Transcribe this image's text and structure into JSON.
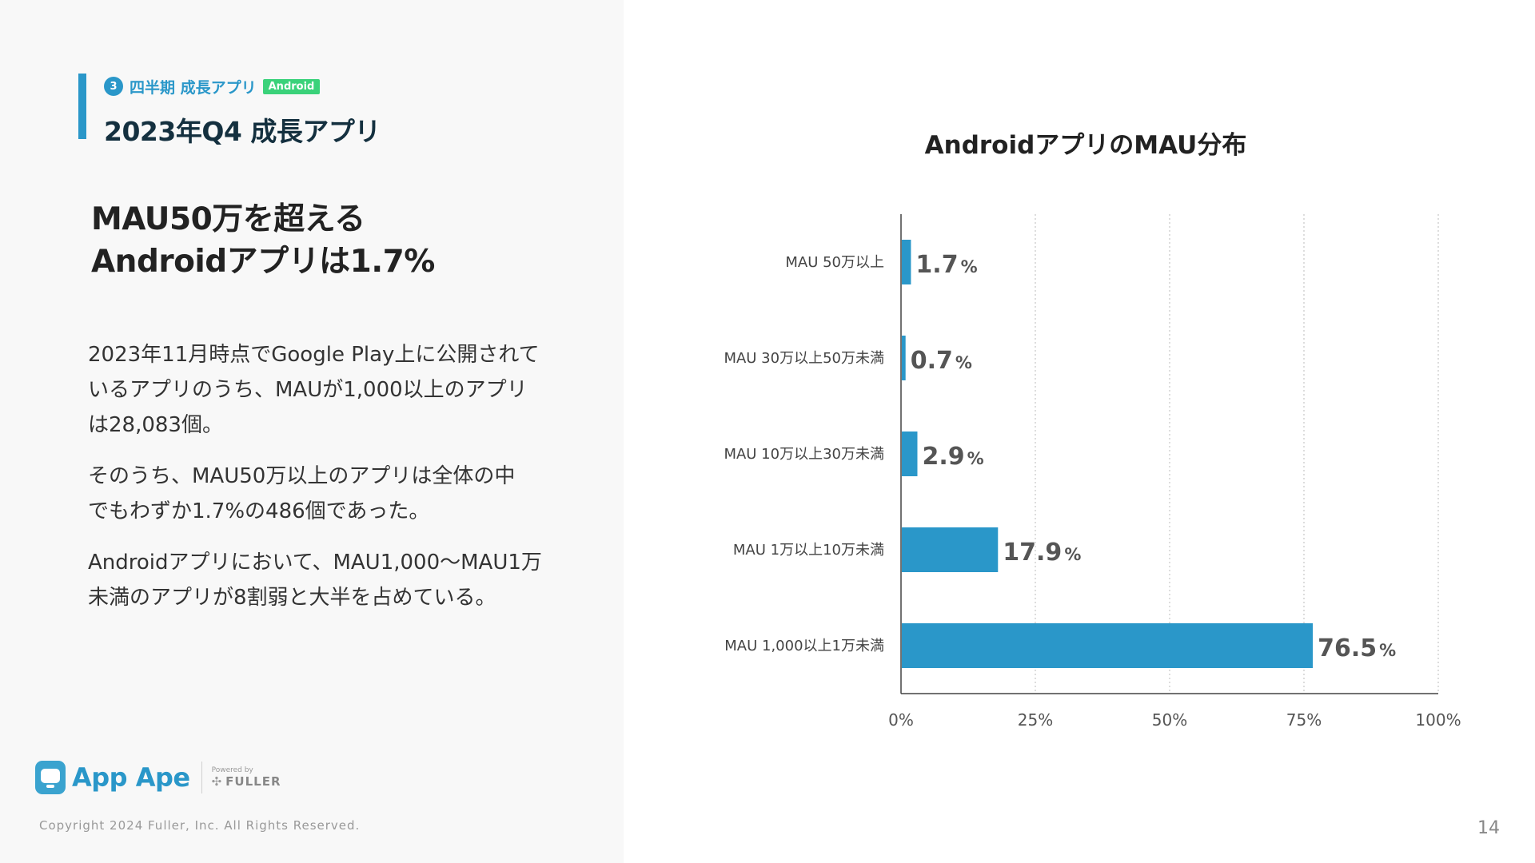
{
  "left": {
    "section_number": "3",
    "section_label": "四半期 成長アプリ",
    "platform_badge": "Android",
    "page_title": "2023年Q4 成長アプリ",
    "headline": [
      "MAU50万を超える",
      "Androidアプリは1.7%"
    ],
    "paragraphs": [
      [
        "2023年11月時点でGoogle Play上に公開されて",
        "いるアプリのうち、MAUが1,000以上のアプリ",
        "は28,083個。"
      ],
      [
        "そのうち、MAU50万以上のアプリは全体の中",
        "でもわずか1.7%の486個であった。"
      ],
      [
        "Androidアプリにおいて、MAU1,000〜MAU1万",
        "未満のアプリが8割弱と大半を占めている。"
      ]
    ]
  },
  "footer": {
    "logo_text": "App Ape",
    "powered_by": "Powered by",
    "company": "FULLER",
    "copyright": "Copyright 2024 Fuller, Inc. All Rights Reserved.",
    "page_number": "14"
  },
  "colors": {
    "accent": "#2a97c9",
    "badge": "#3ad27a",
    "bar": "#2a97c9"
  },
  "chart_data": {
    "type": "bar",
    "orientation": "horizontal",
    "title": "AndroidアプリのMAU分布",
    "xlabel": "",
    "ylabel": "",
    "categories": [
      "MAU 50万以上",
      "MAU 30万以上50万未満",
      "MAU 10万以上30万未満",
      "MAU 1万以上10万未満",
      "MAU 1,000以上1万未満"
    ],
    "values": [
      1.7,
      0.7,
      2.9,
      17.9,
      76.5
    ],
    "data_labels": [
      "1.7",
      "0.7",
      "2.9",
      "17.9",
      "76.5"
    ],
    "data_label_unit": "%",
    "xlim": [
      0,
      100
    ],
    "xticks": [
      0,
      25,
      50,
      75,
      100
    ],
    "xtick_labels": [
      "0%",
      "25%",
      "50%",
      "75%",
      "100%"
    ],
    "grid": "vertical dotted",
    "legend": "none"
  }
}
